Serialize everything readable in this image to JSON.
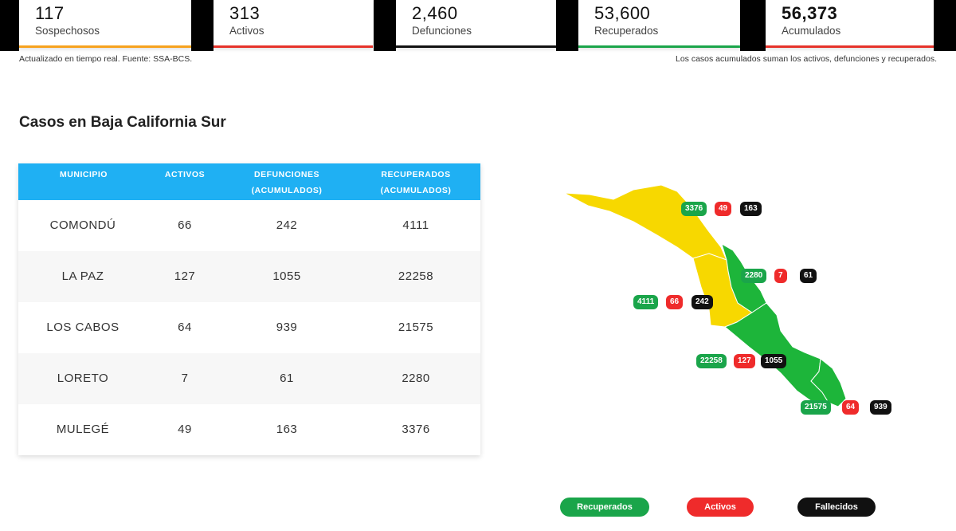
{
  "stats": [
    {
      "value": "117",
      "label": "Sospechosos",
      "color": "#f7a21e"
    },
    {
      "value": "313",
      "label": "Activos",
      "color": "#e6332a"
    },
    {
      "value": "2,460",
      "label": "Defunciones",
      "color": "#111111"
    },
    {
      "value": "53,600",
      "label": "Recuperados",
      "color": "#1aa54a"
    },
    {
      "value": "56,373",
      "label": "Acumulados",
      "color": "#e6332a"
    }
  ],
  "notes": {
    "left": "Actualizado en tiempo real. Fuente: SSA-BCS.",
    "right": "Los casos acumulados suman los activos, defunciones y recuperados."
  },
  "section_title": "Casos en Baja California Sur",
  "table": {
    "headers": {
      "municipio": "MUNICIPIO",
      "activos": "ACTIVOS",
      "defunciones_1": "DEFUNCIONES",
      "defunciones_2": "(ACUMULADOS)",
      "recuperados_1": "RECUPERADOS",
      "recuperados_2": "(ACUMULADOS)"
    },
    "rows": [
      {
        "municipio": "COMONDÚ",
        "activos": "66",
        "defunciones": "242",
        "recuperados": "4111"
      },
      {
        "municipio": "LA PAZ",
        "activos": "127",
        "defunciones": "1055",
        "recuperados": "22258"
      },
      {
        "municipio": "LOS CABOS",
        "activos": "64",
        "defunciones": "939",
        "recuperados": "21575"
      },
      {
        "municipio": "LORETO",
        "activos": "7",
        "defunciones": "61",
        "recuperados": "2280"
      },
      {
        "municipio": "MULEGÉ",
        "activos": "49",
        "defunciones": "163",
        "recuperados": "3376"
      }
    ]
  },
  "map": {
    "colors": {
      "yellow": "#f7d800",
      "green": "#1db53a"
    },
    "badges": {
      "mulege": {
        "rec": "3376",
        "act": "49",
        "fal": "163"
      },
      "loreto": {
        "rec": "2280",
        "act": "7",
        "fal": "61"
      },
      "comondu": {
        "rec": "4111",
        "act": "66",
        "fal": "242"
      },
      "lapaz": {
        "rec": "22258",
        "act": "127",
        "fal": "1055"
      },
      "loscabos": {
        "rec": "21575",
        "act": "64",
        "fal": "939"
      }
    }
  },
  "legend": {
    "recuperados": "Recuperados",
    "activos": "Activos",
    "fallecidos": "Fallecidos"
  }
}
